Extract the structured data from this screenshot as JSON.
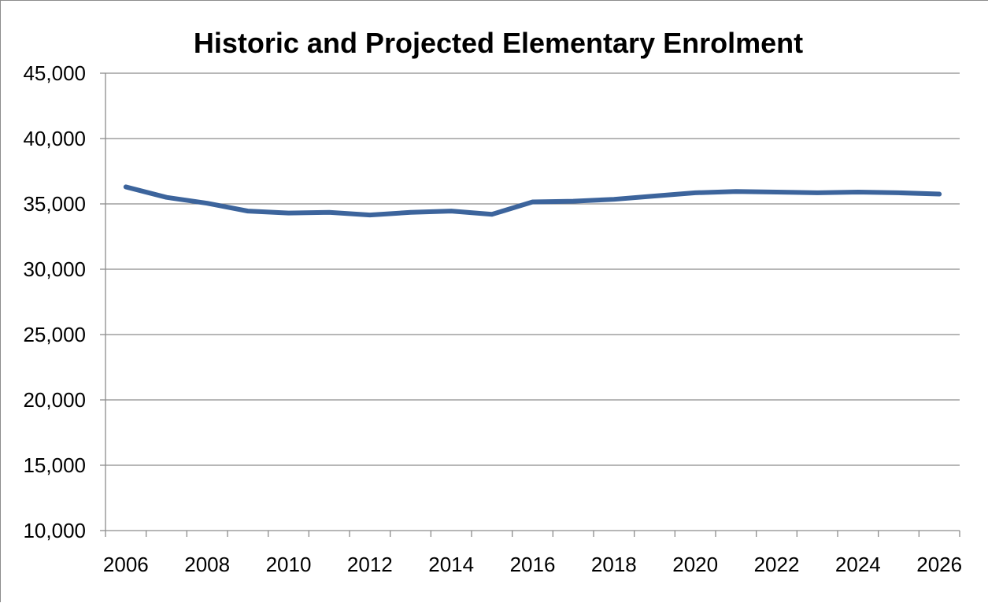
{
  "chart_data": {
    "type": "line",
    "title": "Historic and Projected Elementary Enrolment",
    "xlabel": "",
    "ylabel": "",
    "x": [
      2006,
      2007,
      2008,
      2009,
      2010,
      2011,
      2012,
      2013,
      2014,
      2015,
      2016,
      2017,
      2018,
      2019,
      2020,
      2021,
      2022,
      2023,
      2024,
      2025,
      2026
    ],
    "series": [
      {
        "name": "",
        "color": "#3c649c",
        "values": [
          36300,
          35500,
          35050,
          34450,
          34300,
          34350,
          34150,
          34350,
          34450,
          34200,
          35150,
          35200,
          35350,
          35600,
          35850,
          35950,
          35900,
          35850,
          35900,
          35850,
          35750
        ]
      }
    ],
    "xlim": [
      2005.5,
      2026.5
    ],
    "ylim": [
      10000,
      45000
    ],
    "x_tick_labels": [
      "2006",
      "2008",
      "2010",
      "2012",
      "2014",
      "2016",
      "2018",
      "2020",
      "2022",
      "2024",
      "2026"
    ],
    "y_tick_labels": [
      "10,000",
      "15,000",
      "20,000",
      "25,000",
      "30,000",
      "35,000",
      "40,000",
      "45,000"
    ],
    "y_ticks": [
      10000,
      15000,
      20000,
      25000,
      30000,
      35000,
      40000,
      45000
    ],
    "grid": true,
    "legend": "none",
    "colors": {
      "line": "#3c649c",
      "grid": "#8c8c8c",
      "axis": "#8c8c8c",
      "text": "#000000"
    }
  }
}
